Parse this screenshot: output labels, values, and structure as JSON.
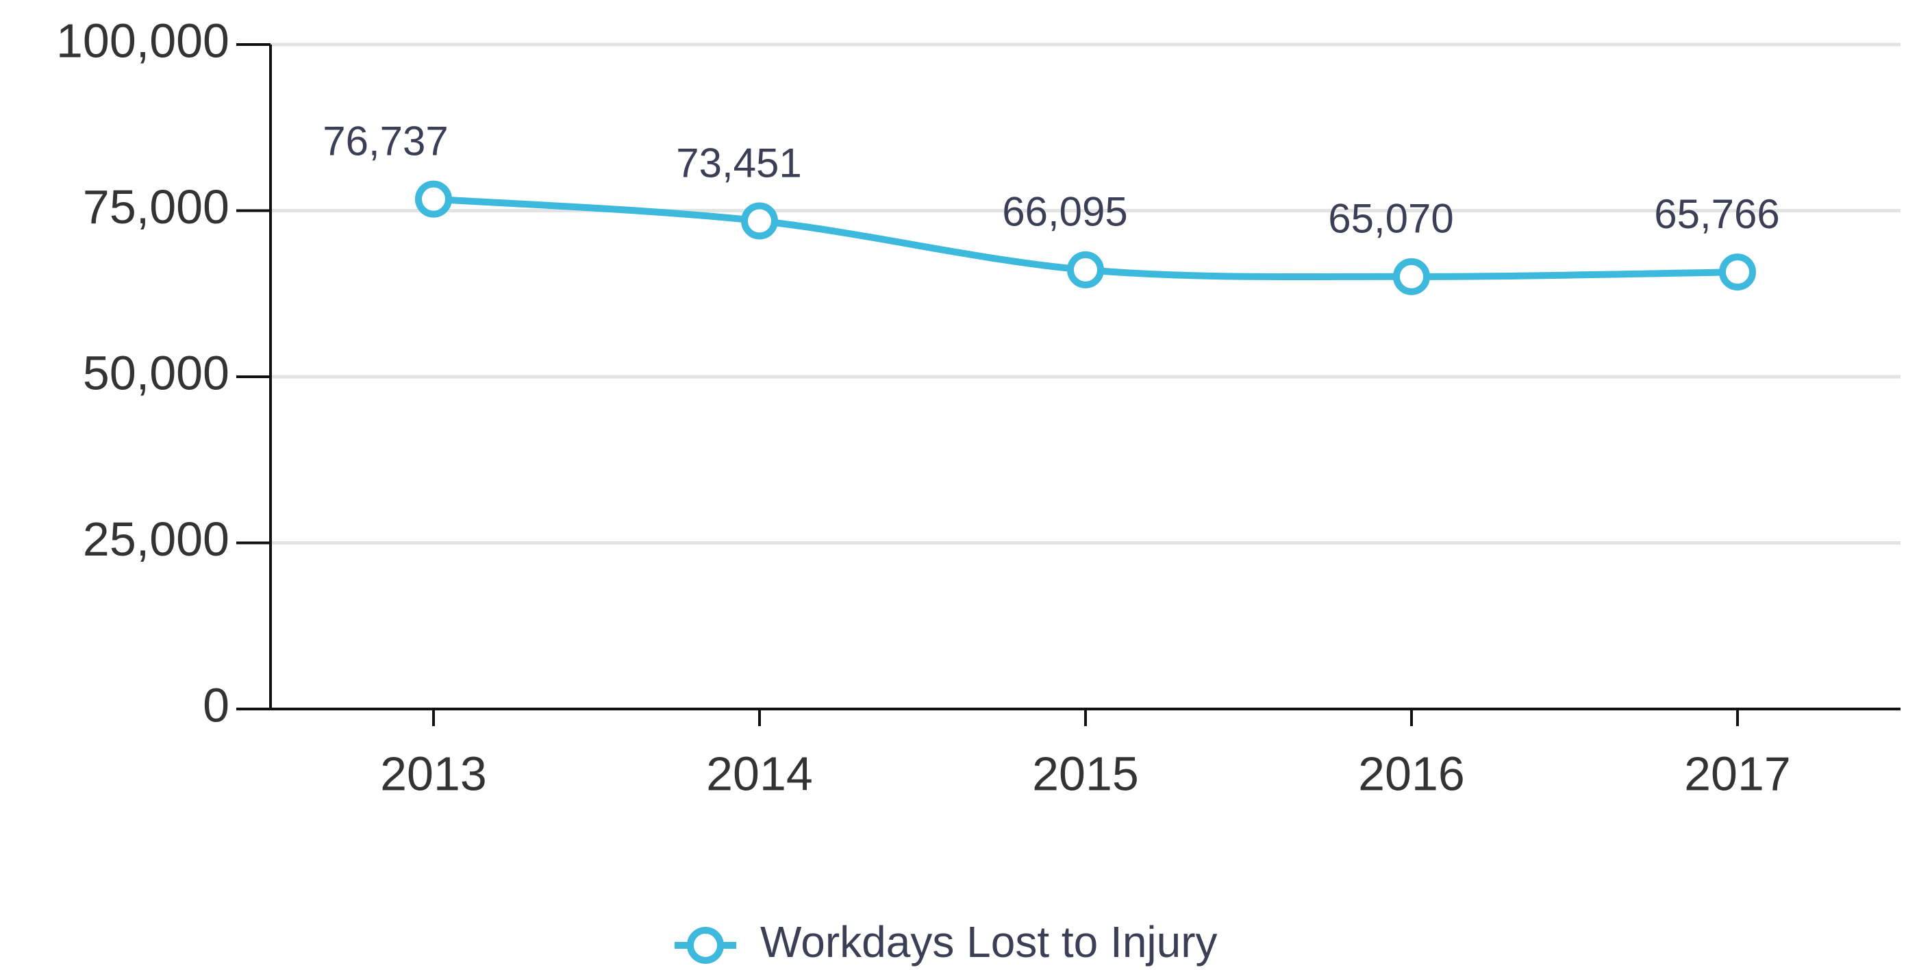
{
  "chart_data": {
    "type": "line",
    "categories": [
      "2013",
      "2014",
      "2015",
      "2016",
      "2017"
    ],
    "series": [
      {
        "name": "Workdays Lost to Injury",
        "color": "#3cb9dc",
        "values": [
          76737,
          73451,
          66095,
          65070,
          65766
        ],
        "value_labels": [
          "76,737",
          "73,451",
          "66,095",
          "65,070",
          "65,766"
        ]
      }
    ],
    "ylim": [
      0,
      100000
    ],
    "yticks": [
      0,
      {
        "value": 25000,
        "label": "25,000"
      },
      {
        "value": 50000,
        "label": "50,000"
      },
      {
        "value": 75000,
        "label": "75,000"
      },
      {
        "value": 100000,
        "label": "100,000"
      }
    ],
    "grid": true,
    "legend": "bottom"
  }
}
